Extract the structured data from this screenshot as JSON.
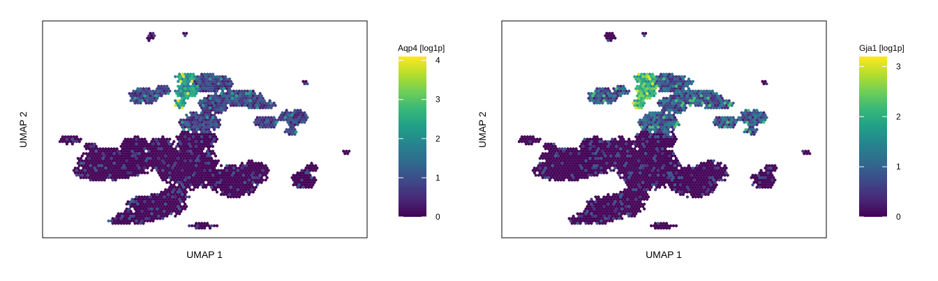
{
  "chart_data": [
    {
      "type": "heatmap",
      "subtype": "umap-hexbin-feature-plot",
      "gene": "Aqp4",
      "xlabel": "UMAP 1",
      "ylabel": "UMAP 2",
      "colorbar": {
        "title": "Aqp4 [log1p]",
        "range": [
          0,
          4.1
        ],
        "ticks": [
          0,
          1,
          2,
          3,
          4
        ],
        "tick_labels": [
          "0",
          "1",
          "2",
          "3",
          "4"
        ],
        "colormap": "viridis"
      },
      "grid": false,
      "legend_position": "right",
      "high_expression_region": "upper-central cluster",
      "level_high_region": 0.7,
      "level_high_spot": 0.95,
      "level_medium_clusters": 0.3
    },
    {
      "type": "heatmap",
      "subtype": "umap-hexbin-feature-plot",
      "gene": "Gja1",
      "xlabel": "UMAP 1",
      "ylabel": "UMAP 2",
      "colorbar": {
        "title": "Gja1 [log1p]",
        "range": [
          0,
          3.2
        ],
        "ticks": [
          0,
          1,
          2,
          3
        ],
        "tick_labels": [
          "0",
          "1",
          "2",
          "3"
        ],
        "colormap": "viridis"
      },
      "grid": false,
      "legend_position": "right",
      "high_expression_region": "upper-central cluster",
      "level_high_region": 0.88,
      "level_high_spot": 0.95,
      "level_medium_clusters": 0.4
    }
  ],
  "colors": {
    "viridis": [
      "#440154",
      "#482878",
      "#3e4989",
      "#31688e",
      "#26828e",
      "#1f9e89",
      "#35b779",
      "#6ece58",
      "#b5de2b",
      "#fde725"
    ],
    "frame": "#000000",
    "background": "#ffffff"
  }
}
